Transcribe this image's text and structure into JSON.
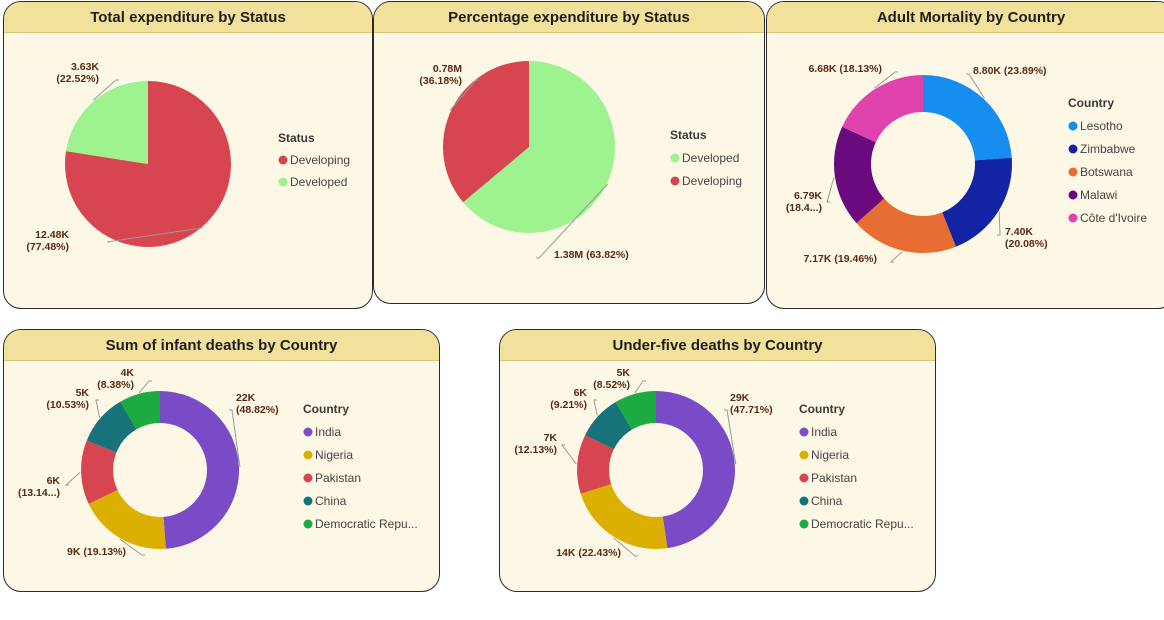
{
  "chart_data": [
    {
      "id": "c1",
      "type": "pie",
      "title": "Total expenditure by Status",
      "legend_title": "Status",
      "start_angle": 0,
      "slices": [
        {
          "label": "Developing",
          "value": 12.48,
          "color": "#d64550",
          "text": [
            "12.48K",
            "(77.48%)"
          ]
        },
        {
          "label": "Developed",
          "value": 3.63,
          "color": "#9ef28f",
          "text": [
            "3.63K",
            "(22.52%)"
          ]
        }
      ]
    },
    {
      "id": "c2",
      "type": "pie",
      "title": "Percentage expenditure by Status",
      "legend_title": "Status",
      "start_angle": 0,
      "slices": [
        {
          "label": "Developed",
          "value": 1.38,
          "color": "#9ef28f",
          "text": [
            "1.38M (63.82%)"
          ]
        },
        {
          "label": "Developing",
          "value": 0.78,
          "color": "#d64550",
          "text": [
            "0.78M",
            "(36.18%)"
          ]
        }
      ]
    },
    {
      "id": "c3",
      "type": "pie",
      "title": "Adult Mortality by Country",
      "legend_title": "Country",
      "start_angle": 0,
      "slices": [
        {
          "label": "Lesotho",
          "value": 8.8,
          "color": "#168ef0",
          "text": [
            "8.80K (23.89%)"
          ]
        },
        {
          "label": "Zimbabwe",
          "value": 7.4,
          "color": "#1224a3",
          "text": [
            "7.40K",
            "(20.08%)"
          ]
        },
        {
          "label": "Botswana",
          "value": 7.17,
          "color": "#e86d35",
          "text": [
            "7.17K (19.46%)"
          ]
        },
        {
          "label": "Malawi",
          "value": 6.79,
          "color": "#6b0a7e",
          "text": [
            "6.79K",
            "(18.4...)"
          ]
        },
        {
          "label": "Côte d'Ivoire",
          "value": 6.68,
          "color": "#e043ad",
          "text": [
            "6.68K (18.13%)"
          ]
        }
      ]
    },
    {
      "id": "c4",
      "type": "pie",
      "title": "Sum of infant deaths by Country",
      "legend_title": "Country",
      "start_angle": 0,
      "slices": [
        {
          "label": "India",
          "value": 48.82,
          "color": "#7a4bc6",
          "text": [
            "22K",
            "(48.82%)"
          ]
        },
        {
          "label": "Nigeria",
          "value": 19.13,
          "color": "#dbb002",
          "text": [
            "9K (19.13%)"
          ]
        },
        {
          "label": "Pakistan",
          "value": 13.14,
          "color": "#d64550",
          "text": [
            "6K",
            "(13.14...)"
          ]
        },
        {
          "label": "China",
          "value": 10.53,
          "color": "#17727a",
          "text": [
            "5K",
            "(10.53%)"
          ]
        },
        {
          "label": "Democratic Repu...",
          "value": 8.38,
          "color": "#1bab40",
          "text": [
            "4K",
            "(8.38%)"
          ]
        }
      ]
    },
    {
      "id": "c5",
      "type": "pie",
      "title": "Under-five deaths by Country",
      "legend_title": "Country",
      "start_angle": 0,
      "slices": [
        {
          "label": "India",
          "value": 47.71,
          "color": "#7a4bc6",
          "text": [
            "29K",
            "(47.71%)"
          ]
        },
        {
          "label": "Nigeria",
          "value": 22.43,
          "color": "#dbb002",
          "text": [
            "14K (22.43%)"
          ]
        },
        {
          "label": "Pakistan",
          "value": 12.13,
          "color": "#d64550",
          "text": [
            "7K",
            "(12.13%)"
          ]
        },
        {
          "label": "China",
          "value": 9.21,
          "color": "#17727a",
          "text": [
            "6K",
            "(9.21%)"
          ]
        },
        {
          "label": "Democratic Repu...",
          "value": 8.52,
          "color": "#1bab40",
          "text": [
            "5K",
            "(8.52%)"
          ]
        }
      ]
    }
  ]
}
